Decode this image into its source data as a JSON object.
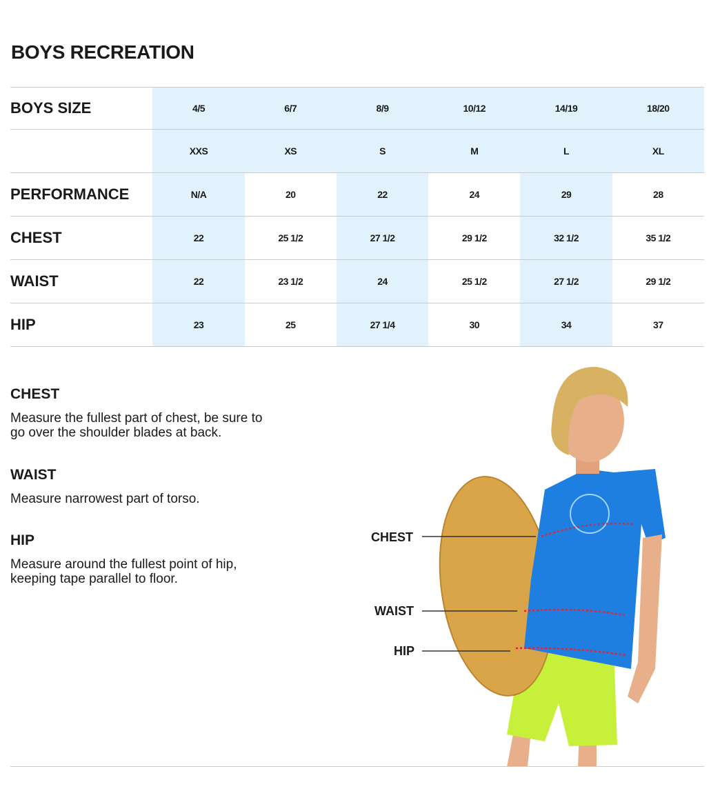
{
  "title": "BOYS RECREATION",
  "table": {
    "header_label": "BOYS SIZE",
    "sizes": [
      "4/5",
      "6/7",
      "8/9",
      "10/12",
      "14/19",
      "18/20"
    ],
    "letter_sizes": [
      "XXS",
      "XS",
      "S",
      "M",
      "L",
      "XL"
    ],
    "rows": [
      {
        "label": "PERFORMANCE",
        "values": [
          "N/A",
          "20",
          "22",
          "24",
          "29",
          "28"
        ]
      },
      {
        "label": "CHEST",
        "values": [
          "22",
          "25 1/2",
          "27 1/2",
          "29 1/2",
          "32 1/2",
          "35 1/2"
        ]
      },
      {
        "label": "WAIST",
        "values": [
          "22",
          "23 1/2",
          "24",
          "25 1/2",
          "27 1/2",
          "29 1/2"
        ]
      },
      {
        "label": "HIP",
        "values": [
          "23",
          "25",
          "27 1/4",
          "30",
          "34",
          "37"
        ]
      }
    ]
  },
  "guide": [
    {
      "heading": "CHEST",
      "text": "Measure the fullest part of chest, be sure to go over the shoulder blades at back."
    },
    {
      "heading": "WAIST",
      "text": "Measure narrowest part of torso."
    },
    {
      "heading": "HIP",
      "text": "Measure around the fullest point of hip, keeping tape parallel to floor."
    }
  ],
  "photo_labels": {
    "chest": "CHEST",
    "waist": "WAIST",
    "hip": "HIP"
  },
  "colors": {
    "column_highlight": "#e1f2fc",
    "rule": "#c8ccd0",
    "measure_line": "#d8283c"
  }
}
